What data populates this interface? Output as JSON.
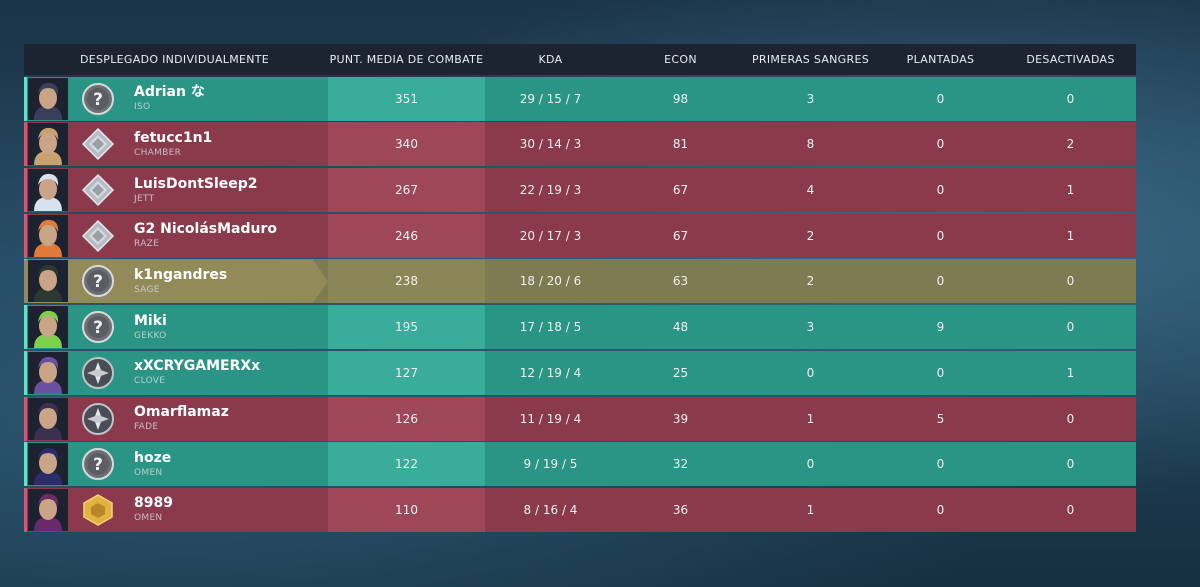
{
  "header": {
    "player": "DESPLEGADO INDIVIDUALMENTE",
    "acs": "PUNT. MEDIA DE COMBATE",
    "kda": "KDA",
    "econ": "ECON",
    "first_bloods": "PRIMERAS SANGRES",
    "plants": "PLANTADAS",
    "defuses": "DESACTIVADAS"
  },
  "colors": {
    "ally_row": "#2a9585",
    "enemy_row": "#8a3a4b",
    "self_row": "#7e7a52"
  },
  "rows": [
    {
      "team": "ally",
      "name": "Adrian な",
      "agent": "ISO",
      "rank_icon": "unranked-question-icon",
      "acs": "351",
      "kda": "29 / 15 / 7",
      "econ": "98",
      "fb": "3",
      "plants": "0",
      "defuses": "0"
    },
    {
      "team": "enemy",
      "name": "fetucc1n1",
      "agent": "CHAMBER",
      "rank_icon": "diamond-rank-icon",
      "acs": "340",
      "kda": "30 / 14 / 3",
      "econ": "81",
      "fb": "8",
      "plants": "0",
      "defuses": "2"
    },
    {
      "team": "enemy",
      "name": "LuisDontSleep2",
      "agent": "JETT",
      "rank_icon": "diamond-rank-icon",
      "acs": "267",
      "kda": "22 / 19 / 3",
      "econ": "67",
      "fb": "4",
      "plants": "0",
      "defuses": "1"
    },
    {
      "team": "enemy",
      "name": "G2 NicolásMaduro",
      "agent": "RAZE",
      "rank_icon": "diamond-rank-icon",
      "acs": "246",
      "kda": "20 / 17 / 3",
      "econ": "67",
      "fb": "2",
      "plants": "0",
      "defuses": "1"
    },
    {
      "team": "self",
      "name": "k1ngandres",
      "agent": "SAGE",
      "rank_icon": "unranked-question-icon",
      "acs": "238",
      "kda": "18 / 20 / 6",
      "econ": "63",
      "fb": "2",
      "plants": "0",
      "defuses": "0"
    },
    {
      "team": "ally",
      "name": "Miki",
      "agent": "GEKKO",
      "rank_icon": "unranked-question-icon",
      "acs": "195",
      "kda": "17 / 18 / 5",
      "econ": "48",
      "fb": "3",
      "plants": "9",
      "defuses": "0"
    },
    {
      "team": "ally",
      "name": "xXCRYGAMERXx",
      "agent": "CLOVE",
      "rank_icon": "ascendant-rank-icon",
      "acs": "127",
      "kda": "12 / 19 / 4",
      "econ": "25",
      "fb": "0",
      "plants": "0",
      "defuses": "1"
    },
    {
      "team": "enemy",
      "name": "Omarflamaz",
      "agent": "FADE",
      "rank_icon": "ascendant-rank-icon",
      "acs": "126",
      "kda": "11 / 19 / 4",
      "econ": "39",
      "fb": "1",
      "plants": "5",
      "defuses": "0"
    },
    {
      "team": "ally",
      "name": "hoze",
      "agent": "OMEN",
      "rank_icon": "unranked-question-icon",
      "acs": "122",
      "kda": "9 / 19 / 5",
      "econ": "32",
      "fb": "0",
      "plants": "0",
      "defuses": "0"
    },
    {
      "team": "enemy",
      "name": "8989",
      "agent": "OMEN",
      "rank_icon": "gold-rank-icon",
      "acs": "110",
      "kda": "8 / 16 / 4",
      "econ": "36",
      "fb": "1",
      "plants": "0",
      "defuses": "0"
    }
  ]
}
